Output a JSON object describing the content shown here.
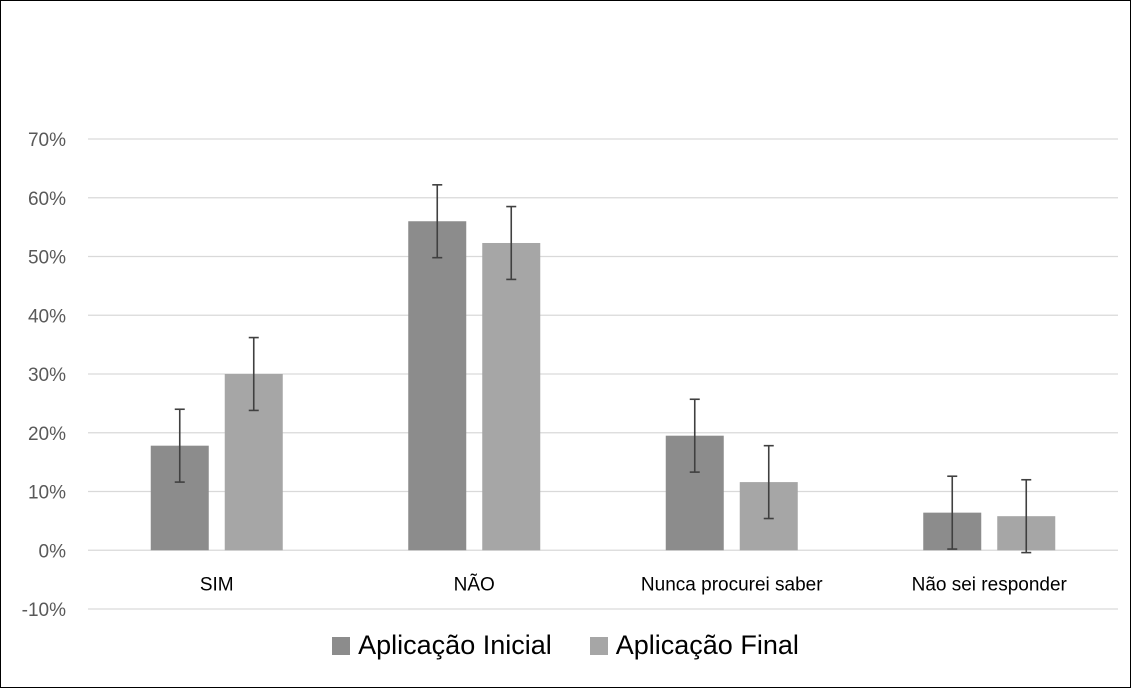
{
  "chart_data": {
    "type": "bar",
    "title": "",
    "xlabel": "",
    "ylabel": "",
    "categories": [
      "SIM",
      "NÃO",
      "Nunca procurei saber",
      "Não sei responder"
    ],
    "series": [
      {
        "name": "Aplicação Inicial",
        "color": "#8c8c8c",
        "values": [
          0.178,
          0.56,
          0.195,
          0.064
        ],
        "error": [
          0.062,
          0.062,
          0.062,
          0.062
        ]
      },
      {
        "name": "Aplicação Final",
        "color": "#a6a6a6",
        "values": [
          0.3,
          0.523,
          0.116,
          0.058
        ],
        "error": [
          0.062,
          0.062,
          0.062,
          0.062
        ]
      }
    ],
    "ylim": [
      -0.1,
      0.7
    ],
    "yticks": [
      -0.1,
      0,
      0.1,
      0.2,
      0.3,
      0.4,
      0.5,
      0.6,
      0.7
    ],
    "ytick_labels": [
      "-10%",
      "0%",
      "10%",
      "20%",
      "30%",
      "40%",
      "50%",
      "60%",
      "70%"
    ],
    "grid": true,
    "legend_position": "bottom"
  }
}
